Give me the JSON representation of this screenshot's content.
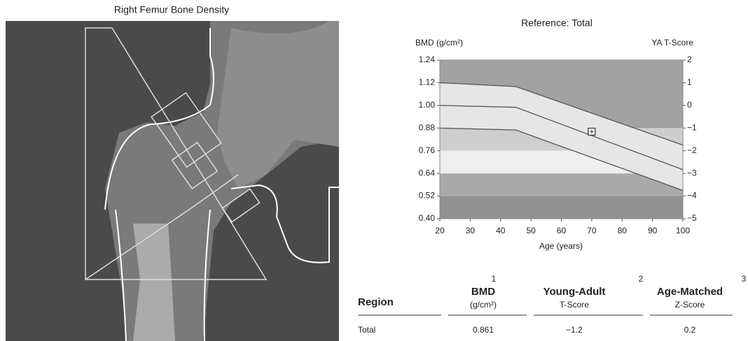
{
  "image_title": "Right Femur Bone Density",
  "chart_data": {
    "type": "line",
    "title": "Reference: Total",
    "y_label": "BMD (g/cm²)",
    "y2_label": "YA T-Score",
    "x_label": "Age (years)",
    "xlim": [
      20,
      100
    ],
    "xticks": [
      20,
      30,
      40,
      50,
      60,
      70,
      80,
      90,
      100
    ],
    "ylim": [
      0.4,
      1.24
    ],
    "yticks": [
      {
        "value": 0.4,
        "label": "0.40"
      },
      0.52,
      0.64,
      0.76,
      0.88,
      {
        "value": 1,
        "label": "1.00"
      },
      1.12,
      1.24
    ],
    "y2lim": [
      -5,
      2
    ],
    "y2ticks": [
      {
        "value": -5,
        "label": "−5"
      },
      {
        "value": -4,
        "label": "−4"
      },
      {
        "value": -3,
        "label": "−3"
      },
      {
        "value": -2,
        "label": "−2"
      },
      {
        "value": -1,
        "label": "−1"
      },
      0,
      1,
      2
    ],
    "bands": [
      {
        "ylim": [
          0.4,
          0.52
        ],
        "color": "#919191"
      },
      {
        "ylim": [
          0.52,
          0.64
        ],
        "color": "#a9a9a9"
      },
      {
        "ylim": [
          0.64,
          0.76
        ],
        "color": "#efefef"
      },
      {
        "ylim": [
          0.76,
          0.88
        ],
        "color": "#cecece"
      },
      {
        "ylim": [
          0.88,
          1.24
        ],
        "color": "#a2a2a2"
      }
    ],
    "range_color": "#e6e6e6",
    "x": [
      20,
      45,
      100
    ],
    "series": [
      {
        "color": "#555555",
        "values": [
          1.12,
          1.1,
          0.79
        ]
      },
      {
        "color": "#555555",
        "values": [
          1.0,
          0.99,
          0.66
        ]
      },
      {
        "color": "#555555",
        "values": [
          0.88,
          0.87,
          0.55
        ]
      }
    ],
    "patient": {
      "x": 70,
      "value": 0.861,
      "color": "#333333"
    }
  },
  "table": {
    "columns": [
      {
        "title": "Region"
      },
      {
        "title": "BMD",
        "note": "1",
        "unit": "(g/cm²)"
      },
      {
        "title": "Young-Adult",
        "note": "2",
        "unit": "T-Score"
      },
      {
        "title": "Age-Matched",
        "note": "3",
        "unit": "Z-Score"
      }
    ],
    "rows": [
      [
        "Total",
        "0.861",
        "−1.2",
        "0.2"
      ]
    ]
  }
}
